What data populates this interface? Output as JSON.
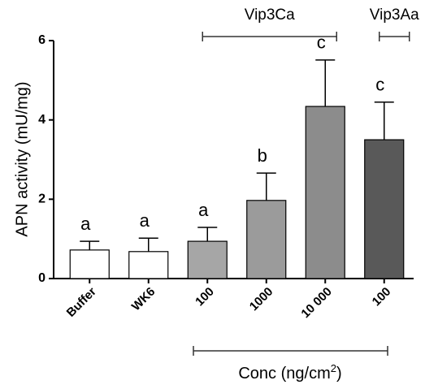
{
  "chart_data": {
    "type": "bar",
    "y_label": "APN activity (mU/mg)",
    "x_label": [
      "Conc (ng/cm",
      "2",
      ")"
    ],
    "categories": [
      "Buffer",
      "WK6",
      "100",
      "1000",
      "10 000",
      "100"
    ],
    "values": [
      0.72,
      0.68,
      0.94,
      1.97,
      4.34,
      3.5
    ],
    "errors": [
      0.22,
      0.34,
      0.35,
      0.69,
      1.17,
      0.95
    ],
    "colors": [
      "#ffffff",
      "#ffffff",
      "#a6a6a6",
      "#9b9b9b",
      "#8c8c8c",
      "#595959"
    ],
    "letters": [
      "a",
      "a",
      "a",
      "b",
      "c",
      "c"
    ],
    "groups": [
      {
        "label": "Vip3Ca",
        "span": [
          2,
          4
        ]
      },
      {
        "label": "Vip3Aa",
        "span": [
          5,
          5
        ]
      }
    ],
    "ylim": [
      0,
      6
    ],
    "yticks": [
      0,
      2,
      4,
      6
    ]
  }
}
